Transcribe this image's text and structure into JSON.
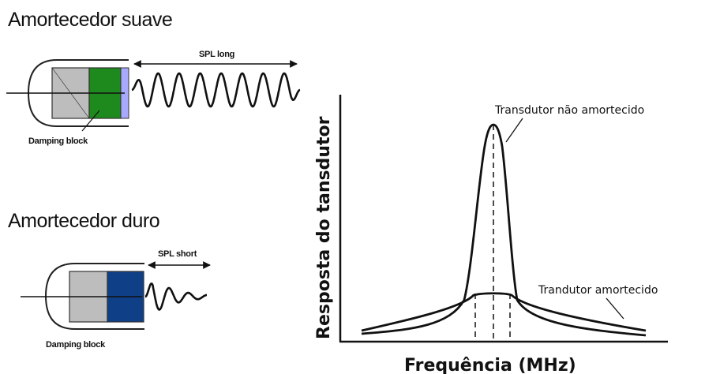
{
  "soft": {
    "title": "Amortecedor suave",
    "spl_label": "SPL long",
    "damping_label": "Damping block",
    "backing_color": "#1e8a1e",
    "face_color": "#a8a8ff"
  },
  "hard": {
    "title": "Amortecedor duro",
    "spl_label": "SPL short",
    "damping_label": "Damping block",
    "backing_color": "#0f3f86"
  },
  "chart": {
    "y_label": "Resposta do tansdutor",
    "x_label": "Frequência (MHz)",
    "undamped_label": "Transdutor não amortecido",
    "damped_label": "Trandutor amortecido"
  }
}
